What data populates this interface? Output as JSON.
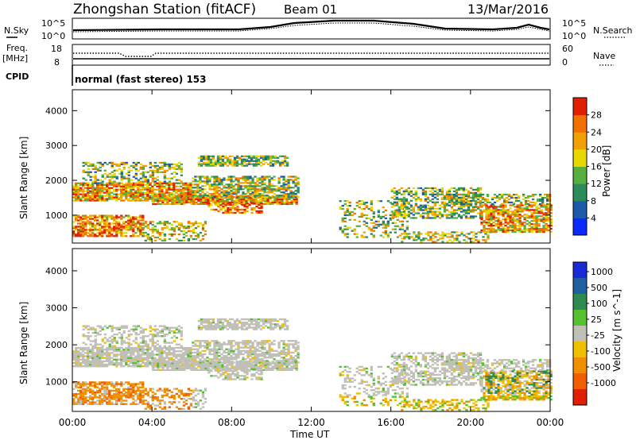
{
  "header": {
    "station": "Zhongshan Station (fitACF)",
    "beam": "Beam 01",
    "date": "13/Mar/2016"
  },
  "noise_panel": {
    "left_label": "N.Sky",
    "left_ticks": [
      "10^5",
      "10^0"
    ],
    "right_label": "N.Search",
    "right_ticks": [
      "10^5",
      "10^0"
    ]
  },
  "freq_panel": {
    "left_label_line1": "Freq.",
    "left_label_line2": "[MHz]",
    "left_ticks": [
      "18",
      "8"
    ],
    "right_label": "Nave",
    "right_ticks": [
      "60",
      "0"
    ]
  },
  "cpid": {
    "label": "CPID",
    "mode": "normal (fast stereo) 153"
  },
  "chart_data": [
    {
      "type": "heatmap",
      "name": "power",
      "ylabel": "Slant Range [km]",
      "yticks": [
        "1000",
        "2000",
        "3000",
        "4000"
      ],
      "ylim": [
        200,
        4600
      ],
      "xlim": [
        0,
        24
      ],
      "colorbar": {
        "label": "Power [dB]",
        "ticks": [
          "4",
          "8",
          "12",
          "16",
          "20",
          "24",
          "28"
        ],
        "colors": [
          "#0a2aff",
          "#1e5aa8",
          "#2d8a5a",
          "#55b040",
          "#e8d800",
          "#f0a000",
          "#f07000",
          "#e02000"
        ]
      }
    },
    {
      "type": "heatmap",
      "name": "velocity",
      "ylabel": "Slant Range [km]",
      "yticks": [
        "1000",
        "2000",
        "3000",
        "4000"
      ],
      "ylim": [
        200,
        4600
      ],
      "xlim": [
        0,
        24
      ],
      "colorbar": {
        "label": "Velocity [m s^-1]",
        "ticks": [
          "1000",
          "500",
          "100",
          "25",
          "-25",
          "-100",
          "-500",
          "-1000"
        ],
        "colors": [
          "#1a2ad8",
          "#2060a0",
          "#2e8a50",
          "#55c030",
          "#c0c0b8",
          "#f0c000",
          "#f09000",
          "#f06000",
          "#e02000"
        ]
      }
    }
  ],
  "x_axis": {
    "ticks": [
      "00:00",
      "04:00",
      "08:00",
      "12:00",
      "16:00",
      "20:00",
      "00:00"
    ],
    "label": "Time UT"
  }
}
